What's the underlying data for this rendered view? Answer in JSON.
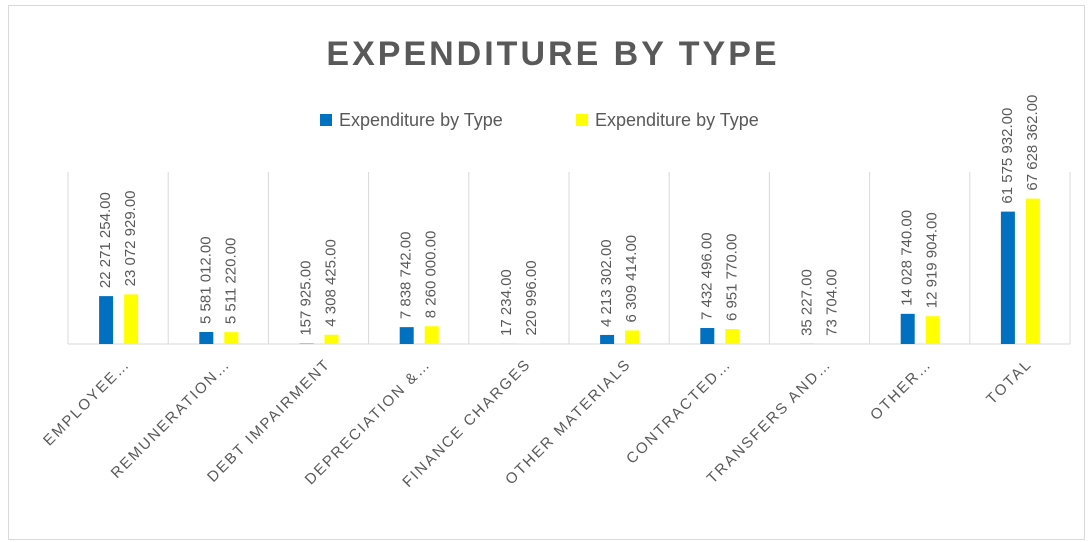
{
  "chart_data": {
    "type": "bar",
    "title": "EXPENDITURE BY TYPE",
    "categories": [
      "EMPLOYEE…",
      "REMUNERATION…",
      "DEBT IMPAIRMENT",
      "DEPRECIATION &…",
      "FINANCE CHARGES",
      "OTHER MATERIALS",
      "CONTRACTED…",
      "TRANSFERS AND…",
      "OTHER…",
      "TOTAL"
    ],
    "series": [
      {
        "name": "Expenditure by Type",
        "color": "#0070c0",
        "values": [
          22271254,
          5581012,
          157925,
          7838742,
          17234,
          4213302,
          7432496,
          35227,
          14028740,
          61575932
        ],
        "value_labels": [
          "22 271 254.00",
          "5 581 012.00",
          "157 925.00",
          "7 838 742.00",
          "17 234.00",
          "4 213 302.00",
          "7 432 496.00",
          "35 227.00",
          "14 028 740.00",
          "61 575 932.00"
        ]
      },
      {
        "name": "Expenditure by Type",
        "color": "#ffff00",
        "values": [
          23072929,
          5511220,
          4308425,
          8260000,
          220996,
          6309414,
          6951770,
          73704,
          12919904,
          67628362
        ],
        "value_labels": [
          "23 072 929.00",
          "5 511 220.00",
          "4 308 425.00",
          "8 260 000.00",
          "220 996.00",
          "6 309 414.00",
          "6 951 770.00",
          "73 704.00",
          "12 919 904.00",
          "67 628 362.00"
        ]
      }
    ],
    "ylim": [
      0,
      80000000
    ]
  }
}
